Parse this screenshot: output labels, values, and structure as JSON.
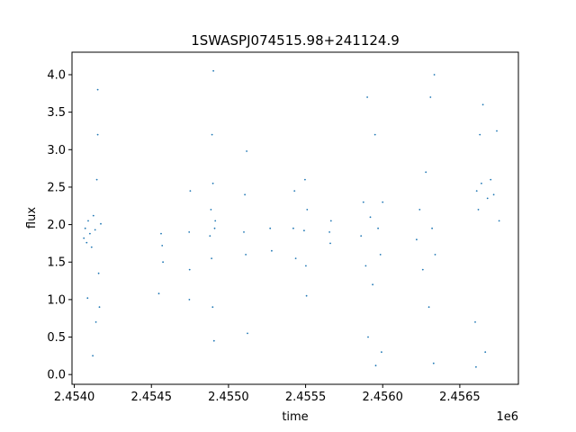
{
  "chart_data": {
    "type": "scatter",
    "title": "1SWASPJ074515.98+241124.9",
    "xlabel": "time",
    "ylabel": "flux",
    "x_offset_label": "1e6",
    "xlim": [
      2453985,
      2456880
    ],
    "ylim": [
      -0.13,
      4.3
    ],
    "x_ticks": [
      2454000,
      2454500,
      2455000,
      2455500,
      2456000,
      2456500
    ],
    "x_tick_labels": [
      "2.4540",
      "2.4545",
      "2.4550",
      "2.4555",
      "2.4560",
      "2.4565"
    ],
    "y_ticks": [
      0.0,
      0.5,
      1.0,
      1.5,
      2.0,
      2.5,
      3.0,
      3.5,
      4.0
    ],
    "y_tick_labels": [
      "0.0",
      "0.5",
      "1.0",
      "1.5",
      "2.0",
      "2.5",
      "3.0",
      "3.5",
      "4.0"
    ],
    "grid": false,
    "marker_color": "#1f77b4",
    "series": [
      {
        "values": [
          {
            "x": 2454062,
            "y": 1.82
          },
          {
            "x": 2454071,
            "y": 1.95
          },
          {
            "x": 2454080,
            "y": 1.76
          },
          {
            "x": 2454090,
            "y": 2.05
          },
          {
            "x": 2454101,
            "y": 1.88
          },
          {
            "x": 2454112,
            "y": 1.7
          },
          {
            "x": 2454124,
            "y": 2.12
          },
          {
            "x": 2454135,
            "y": 1.93
          },
          {
            "x": 2454146,
            "y": 2.6
          },
          {
            "x": 2454152,
            "y": 3.2
          },
          {
            "x": 2454158,
            "y": 1.35
          },
          {
            "x": 2454163,
            "y": 0.9
          },
          {
            "x": 2454172,
            "y": 2.01
          },
          {
            "x": 2454086,
            "y": 1.02
          },
          {
            "x": 2454120,
            "y": 0.25
          },
          {
            "x": 2454152,
            "y": 3.8
          },
          {
            "x": 2454140,
            "y": 0.7
          },
          {
            "x": 2454563,
            "y": 1.88
          },
          {
            "x": 2454570,
            "y": 1.72
          },
          {
            "x": 2454575,
            "y": 1.5
          },
          {
            "x": 2454548,
            "y": 1.08
          },
          {
            "x": 2454745,
            "y": 1.9
          },
          {
            "x": 2454748,
            "y": 1.4
          },
          {
            "x": 2454752,
            "y": 2.45
          },
          {
            "x": 2454746,
            "y": 1.0
          },
          {
            "x": 2454880,
            "y": 1.85
          },
          {
            "x": 2454886,
            "y": 2.2
          },
          {
            "x": 2454890,
            "y": 1.55
          },
          {
            "x": 2454893,
            "y": 3.2
          },
          {
            "x": 2454897,
            "y": 0.9
          },
          {
            "x": 2454899,
            "y": 2.55
          },
          {
            "x": 2454902,
            "y": 4.05
          },
          {
            "x": 2454906,
            "y": 0.45
          },
          {
            "x": 2454910,
            "y": 1.95
          },
          {
            "x": 2454914,
            "y": 2.05
          },
          {
            "x": 2455100,
            "y": 1.9
          },
          {
            "x": 2455106,
            "y": 2.4
          },
          {
            "x": 2455112,
            "y": 1.6
          },
          {
            "x": 2455118,
            "y": 2.98
          },
          {
            "x": 2455123,
            "y": 0.55
          },
          {
            "x": 2455270,
            "y": 1.95
          },
          {
            "x": 2455280,
            "y": 1.65
          },
          {
            "x": 2455420,
            "y": 1.95
          },
          {
            "x": 2455428,
            "y": 2.45
          },
          {
            "x": 2455436,
            "y": 1.55
          },
          {
            "x": 2455490,
            "y": 1.92
          },
          {
            "x": 2455496,
            "y": 2.6
          },
          {
            "x": 2455502,
            "y": 1.45
          },
          {
            "x": 2455506,
            "y": 1.05
          },
          {
            "x": 2455510,
            "y": 2.2
          },
          {
            "x": 2455655,
            "y": 1.9
          },
          {
            "x": 2455660,
            "y": 1.75
          },
          {
            "x": 2455665,
            "y": 2.05
          },
          {
            "x": 2455860,
            "y": 1.85
          },
          {
            "x": 2455875,
            "y": 2.3
          },
          {
            "x": 2455890,
            "y": 1.45
          },
          {
            "x": 2455900,
            "y": 3.7
          },
          {
            "x": 2455905,
            "y": 0.5
          },
          {
            "x": 2455920,
            "y": 2.1
          },
          {
            "x": 2455935,
            "y": 1.2
          },
          {
            "x": 2455950,
            "y": 3.2
          },
          {
            "x": 2455955,
            "y": 0.12
          },
          {
            "x": 2455970,
            "y": 1.95
          },
          {
            "x": 2455985,
            "y": 1.6
          },
          {
            "x": 2455992,
            "y": 0.3
          },
          {
            "x": 2456000,
            "y": 2.3
          },
          {
            "x": 2456220,
            "y": 1.8
          },
          {
            "x": 2456240,
            "y": 2.2
          },
          {
            "x": 2456260,
            "y": 1.4
          },
          {
            "x": 2456280,
            "y": 2.7
          },
          {
            "x": 2456300,
            "y": 0.9
          },
          {
            "x": 2456310,
            "y": 3.7
          },
          {
            "x": 2456320,
            "y": 1.95
          },
          {
            "x": 2456330,
            "y": 0.15
          },
          {
            "x": 2456335,
            "y": 4.0
          },
          {
            "x": 2456340,
            "y": 1.6
          },
          {
            "x": 2456600,
            "y": 0.7
          },
          {
            "x": 2456605,
            "y": 0.1
          },
          {
            "x": 2456610,
            "y": 2.45
          },
          {
            "x": 2456620,
            "y": 2.2
          },
          {
            "x": 2456630,
            "y": 3.2
          },
          {
            "x": 2456640,
            "y": 2.55
          },
          {
            "x": 2456650,
            "y": 3.6
          },
          {
            "x": 2456665,
            "y": 0.3
          },
          {
            "x": 2456680,
            "y": 2.35
          },
          {
            "x": 2456700,
            "y": 2.6
          },
          {
            "x": 2456720,
            "y": 2.4
          },
          {
            "x": 2456740,
            "y": 3.25
          },
          {
            "x": 2456755,
            "y": 2.05
          }
        ]
      }
    ]
  }
}
